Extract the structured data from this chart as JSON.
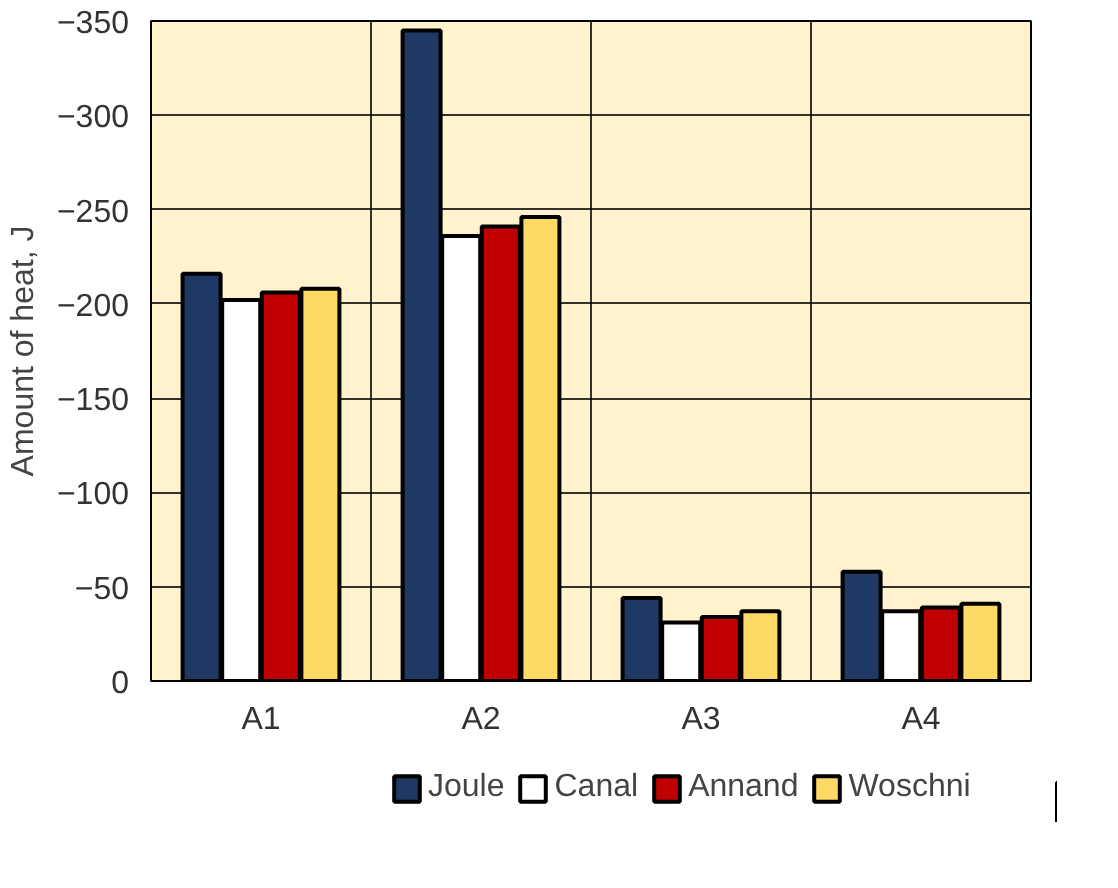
{
  "chart_data": {
    "type": "bar",
    "ylabel": "Amount of heat, J",
    "categories": [
      "A1",
      "A2",
      "A3",
      "A4"
    ],
    "series": [
      {
        "name": "Joule",
        "color": "#203864",
        "values": [
          -216,
          -345,
          -44,
          -58
        ]
      },
      {
        "name": "Canal",
        "color": "#ffffff",
        "values": [
          -202,
          -236,
          -31,
          -37
        ]
      },
      {
        "name": "Annand",
        "color": "#c00000",
        "values": [
          -206,
          -241,
          -34,
          -39
        ]
      },
      {
        "name": "Woschni",
        "color": "#ffd966",
        "values": [
          -208,
          -246,
          -37,
          -41
        ]
      }
    ],
    "ylim": [
      0,
      -350
    ],
    "yticks": [
      -350,
      -300,
      -250,
      -200,
      -150,
      -100,
      -50,
      0
    ],
    "grid": true,
    "legend": "bottom"
  }
}
